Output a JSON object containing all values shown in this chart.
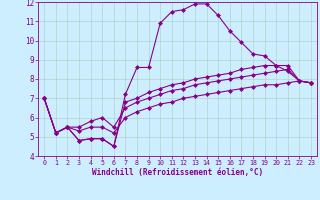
{
  "xlabel": "Windchill (Refroidissement éolien,°C)",
  "bg_color": "#cceeff",
  "line_color": "#880088",
  "marker": "D",
  "markersize": 2.0,
  "linewidth": 0.8,
  "xlim": [
    -0.5,
    23.5
  ],
  "ylim": [
    4,
    12
  ],
  "xticks": [
    0,
    1,
    2,
    3,
    4,
    5,
    6,
    7,
    8,
    9,
    10,
    11,
    12,
    13,
    14,
    15,
    16,
    17,
    18,
    19,
    20,
    21,
    22,
    23
  ],
  "yticks": [
    4,
    5,
    6,
    7,
    8,
    9,
    10,
    11,
    12
  ],
  "grid_color": "#aaccbb",
  "series": [
    [
      7.0,
      5.2,
      5.5,
      4.8,
      4.9,
      4.9,
      4.5,
      7.2,
      8.6,
      8.6,
      10.9,
      11.5,
      11.6,
      11.9,
      11.9,
      11.3,
      10.5,
      9.9,
      9.3,
      9.2,
      8.7,
      8.4,
      7.9,
      7.8
    ],
    [
      7.0,
      5.2,
      5.5,
      4.8,
      4.9,
      4.9,
      4.5,
      6.8,
      7.0,
      7.3,
      7.5,
      7.7,
      7.8,
      8.0,
      8.1,
      8.2,
      8.3,
      8.5,
      8.6,
      8.7,
      8.7,
      8.7,
      7.9,
      7.8
    ],
    [
      7.0,
      5.2,
      5.5,
      5.5,
      5.8,
      6.0,
      5.5,
      6.5,
      6.8,
      7.0,
      7.2,
      7.4,
      7.5,
      7.7,
      7.8,
      7.9,
      8.0,
      8.1,
      8.2,
      8.3,
      8.4,
      8.5,
      7.9,
      7.8
    ],
    [
      7.0,
      5.2,
      5.5,
      5.3,
      5.5,
      5.5,
      5.2,
      6.0,
      6.3,
      6.5,
      6.7,
      6.8,
      7.0,
      7.1,
      7.2,
      7.3,
      7.4,
      7.5,
      7.6,
      7.7,
      7.7,
      7.8,
      7.9,
      7.8
    ]
  ]
}
